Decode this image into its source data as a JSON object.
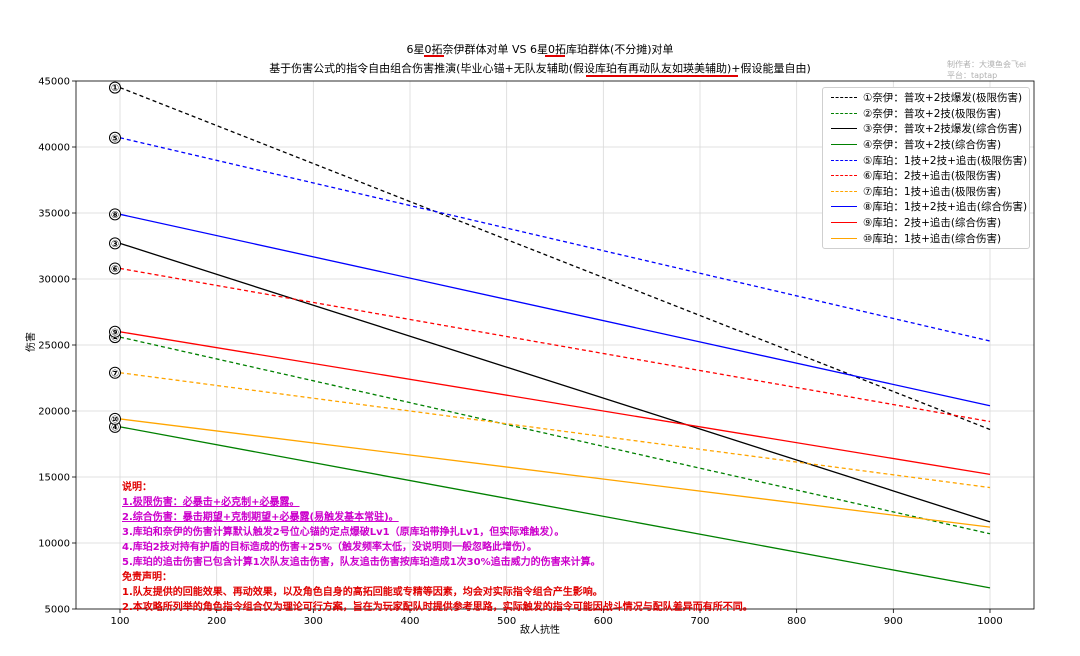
{
  "chart_data": {
    "type": "line",
    "title": "6星0拓奈伊群体对单 VS 6星0拓库珀群体(不分摊)对单",
    "subtitle": "基于伤害公式的指令自由组合伤害推演(毕业心锚+无队友辅助(假设库珀有再动队友如瑛美辅助)+假设能量自由)",
    "xlabel": "敌人抗性",
    "ylabel": "伤害",
    "xlim": [
      100,
      1000
    ],
    "ylim": [
      5000,
      45000
    ],
    "xticks": [
      100,
      200,
      300,
      400,
      500,
      600,
      700,
      800,
      900,
      1000
    ],
    "yticks": [
      5000,
      10000,
      15000,
      20000,
      25000,
      30000,
      35000,
      40000,
      45000
    ],
    "grid": true,
    "legend_position": "top-right",
    "x": [
      100,
      1000
    ],
    "series": [
      {
        "name": "①奈伊：普攻+2技爆发(极限伤害)",
        "marker": "①",
        "values": [
          44500,
          18600
        ],
        "color": "#000000",
        "style": "dashed"
      },
      {
        "name": "②奈伊：普攻+2技(极限伤害)",
        "marker": "②",
        "values": [
          25600,
          10700
        ],
        "color": "#008000",
        "style": "dashed"
      },
      {
        "name": "③奈伊：普攻+2技爆发(综合伤害)",
        "marker": "③",
        "values": [
          32700,
          11600
        ],
        "color": "#000000",
        "style": "solid"
      },
      {
        "name": "④奈伊：普攻+2技(综合伤害)",
        "marker": "④",
        "values": [
          18800,
          6600
        ],
        "color": "#008000",
        "style": "solid"
      },
      {
        "name": "⑤库珀：1技+2技+追击(极限伤害)",
        "marker": "⑤",
        "values": [
          40700,
          25300
        ],
        "color": "#0000ff",
        "style": "dashed"
      },
      {
        "name": "⑥库珀：2技+追击(极限伤害)",
        "marker": "⑥",
        "values": [
          30800,
          19200
        ],
        "color": "#ff0000",
        "style": "dashed"
      },
      {
        "name": "⑦库珀：1技+追击(极限伤害)",
        "marker": "⑦",
        "values": [
          22900,
          14200
        ],
        "color": "#ffa500",
        "style": "dashed"
      },
      {
        "name": "⑧库珀：1技+2技+追击(综合伤害)",
        "marker": "⑧",
        "values": [
          34900,
          20400
        ],
        "color": "#0000ff",
        "style": "solid"
      },
      {
        "name": "⑨库珀：2技+追击(综合伤害)",
        "marker": "⑨",
        "values": [
          26000,
          15200
        ],
        "color": "#ff0000",
        "style": "solid"
      },
      {
        "name": "⑩库珀：1技+追击(综合伤害)",
        "marker": "⑩",
        "values": [
          19400,
          11200
        ],
        "color": "#ffa500",
        "style": "solid"
      }
    ]
  },
  "watermark": {
    "line1": "制作者：大漠鱼会飞ei",
    "line2": "平台：taptap"
  },
  "notes": {
    "heading": "说明：",
    "items": [
      "1.极限伤害：必暴击+必克制+必暴露。",
      "2.综合伤害：暴击期望+克制期望+必暴露(易触发基本常驻)。",
      "3.库珀和奈伊的伤害计算默认触发2号位心锚的定点爆破Lv1（原库珀带挣扎Lv1，但实际难触发）。",
      "4.库珀2技对持有护盾的目标造成的伤害+25%（触发频率太低，没说明则一般忽略此增伤）。",
      "5.库珀的追击伤害已包含计算1次队友追击伤害，队友追击伤害按库珀造成1次30%追击威力的伤害来计算。"
    ],
    "disclaimer_heading": "免责声明：",
    "disclaimer_items": [
      "1.队友提供的回能效果、再动效果，以及角色自身的高拓回能或专精等因素，均会对实际指令组合产生影响。",
      "2.本攻略所列举的角色指令组合仅为理论可行方案，旨在为玩家配队时提供参考思路，实际触发的指令可能因战斗情况与配队差异而有所不同。"
    ]
  }
}
